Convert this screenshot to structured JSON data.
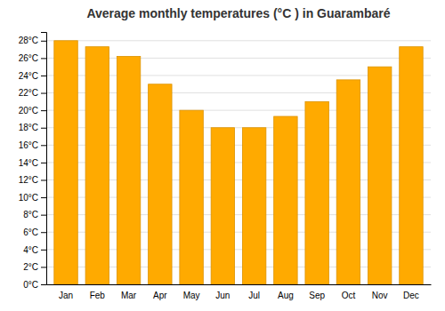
{
  "chart_data": {
    "type": "bar",
    "title": "Average monthly temperatures (°C ) in Guarambaré",
    "categories": [
      "Jan",
      "Feb",
      "Mar",
      "Apr",
      "May",
      "Jun",
      "Jul",
      "Aug",
      "Sep",
      "Oct",
      "Nov",
      "Dec"
    ],
    "values": [
      28,
      27.3,
      26.2,
      23,
      20,
      18,
      18,
      19.3,
      21,
      23.5,
      25,
      27.3
    ],
    "color": "#FFAA00",
    "ylim": [
      0,
      29
    ],
    "yticks": [
      {
        "value": 0,
        "label": "0°C"
      },
      {
        "value": 2,
        "label": "2°C"
      },
      {
        "value": 4,
        "label": "4°C"
      },
      {
        "value": 6,
        "label": "6°C"
      },
      {
        "value": 8,
        "label": "8°C"
      },
      {
        "value": 10,
        "label": "10°C"
      },
      {
        "value": 12,
        "label": "12°C"
      },
      {
        "value": 14,
        "label": "14°C"
      },
      {
        "value": 16,
        "label": "16°C"
      },
      {
        "value": 18,
        "label": "18°C"
      },
      {
        "value": 20,
        "label": "20°C"
      },
      {
        "value": 22,
        "label": "22°C"
      },
      {
        "value": 24,
        "label": "24°C"
      },
      {
        "value": 26,
        "label": "26°C"
      },
      {
        "value": 28,
        "label": "28°C"
      }
    ],
    "grid": true
  }
}
